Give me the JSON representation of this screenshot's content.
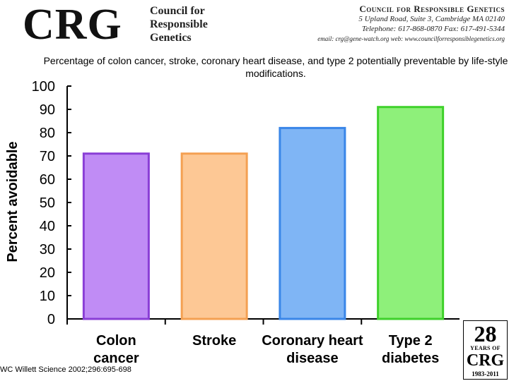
{
  "header": {
    "logo": "CRG",
    "tagline": [
      "Council for",
      "Responsible",
      "Genetics"
    ],
    "contact": {
      "org": "Council for Responsible Genetics",
      "address": "5 Upland Road, Suite 3, Cambridge MA 02140",
      "phone": "Telephone: 617-868-0870  Fax: 617-491-5344",
      "email": "email: crg@gene-watch.org  web: www.councilforresponsiblegenetics.org"
    }
  },
  "chart_data": {
    "type": "bar",
    "title": "Percentage of colon cancer, stroke, coronary heart disease, and type 2  potentially preventable by life-style modifications.",
    "xlabel": "",
    "ylabel": "Percent avoidable",
    "ylim": [
      0,
      100
    ],
    "yticks": [
      0,
      10,
      20,
      30,
      40,
      50,
      60,
      70,
      80,
      90,
      100
    ],
    "categories": [
      [
        "Colon",
        "cancer"
      ],
      [
        "Stroke"
      ],
      [
        "Coronary heart",
        "disease"
      ],
      [
        "Type 2",
        "diabetes"
      ]
    ],
    "values": [
      71,
      71,
      82,
      91
    ],
    "colors": [
      {
        "fill": "#c08cf5",
        "stroke": "#8a3ed6"
      },
      {
        "fill": "#fdc895",
        "stroke": "#f4a052"
      },
      {
        "fill": "#7fb5f5",
        "stroke": "#3a86e8"
      },
      {
        "fill": "#8ef07a",
        "stroke": "#3fd12b"
      }
    ],
    "grid": false,
    "legend": "none"
  },
  "citation": "WC Willett Science 2002;296:695-698",
  "badge": {
    "number": "28",
    "years_text": "YEARS OF",
    "org": "CRG",
    "span": "1983-2011"
  }
}
